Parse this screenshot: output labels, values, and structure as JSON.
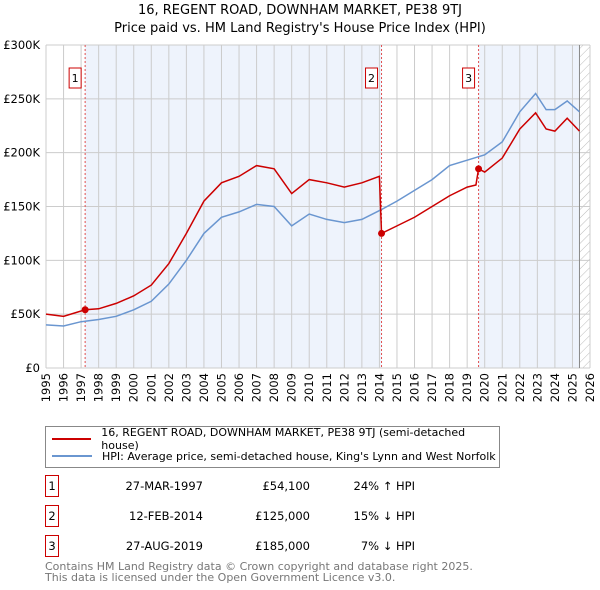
{
  "chart_data": {
    "type": "line",
    "title": "16, REGENT ROAD, DOWNHAM MARKET, PE38 9TJ",
    "subtitle": "Price paid vs. HM Land Registry's House Price Index (HPI)",
    "xlim": [
      1995,
      2026
    ],
    "ylim": [
      0,
      300000
    ],
    "x_ticks": [
      "1995",
      "1996",
      "1997",
      "1998",
      "1999",
      "2000",
      "2001",
      "2002",
      "2003",
      "2004",
      "2005",
      "2006",
      "2007",
      "2008",
      "2009",
      "2010",
      "2011",
      "2012",
      "2013",
      "2014",
      "2015",
      "2016",
      "2017",
      "2018",
      "2019",
      "2020",
      "2021",
      "2022",
      "2023",
      "2024",
      "2025",
      "2026"
    ],
    "y_ticks": [
      {
        "v": 0,
        "label": "£0"
      },
      {
        "v": 50000,
        "label": "£50K"
      },
      {
        "v": 100000,
        "label": "£100K"
      },
      {
        "v": 150000,
        "label": "£150K"
      },
      {
        "v": 200000,
        "label": "£200K"
      },
      {
        "v": 250000,
        "label": "£250K"
      },
      {
        "v": 300000,
        "label": "£300K"
      }
    ],
    "grid": true,
    "series": [
      {
        "name": "16, REGENT ROAD, DOWNHAM MARKET, PE38 9TJ (semi-detached house)",
        "color": "#cc0000",
        "x": [
          1995,
          1996,
          1997.23,
          1998,
          1999,
          2000,
          2001,
          2002,
          2003,
          2004,
          2005,
          2006,
          2007,
          2008,
          2009,
          2010,
          2011,
          2012,
          2013,
          2014.0,
          2014.12,
          2015,
          2016,
          2017,
          2018,
          2019,
          2019.5,
          2019.65,
          2020,
          2021,
          2022,
          2022.9,
          2023.5,
          2024,
          2024.7,
          2025.4
        ],
        "y": [
          50000,
          48000,
          54100,
          55000,
          60000,
          67000,
          77000,
          97000,
          125000,
          155000,
          172000,
          178000,
          188000,
          185000,
          162000,
          175000,
          172000,
          168000,
          172000,
          178000,
          125000,
          132000,
          140000,
          150000,
          160000,
          168000,
          170000,
          185000,
          182000,
          195000,
          222000,
          237000,
          222000,
          220000,
          232000,
          220000
        ]
      },
      {
        "name": "HPI: Average price, semi-detached house, King's Lynn and West Norfolk",
        "color": "#6a96d0",
        "x": [
          1995,
          1996,
          1997,
          1998,
          1999,
          2000,
          2001,
          2002,
          2003,
          2004,
          2005,
          2006,
          2007,
          2008,
          2009,
          2010,
          2011,
          2012,
          2013,
          2014.1,
          2015,
          2016,
          2017,
          2018,
          2019,
          2020,
          2021,
          2022,
          2022.9,
          2023.5,
          2024,
          2024.7,
          2025.4
        ],
        "y": [
          40000,
          39000,
          43000,
          45000,
          48000,
          54000,
          62000,
          78000,
          100000,
          125000,
          140000,
          145000,
          152000,
          150000,
          132000,
          143000,
          138000,
          135000,
          138000,
          147000,
          155000,
          165000,
          175000,
          188000,
          193000,
          198000,
          210000,
          238000,
          255000,
          240000,
          240000,
          248000,
          238000
        ]
      }
    ],
    "sales": [
      {
        "n": "1",
        "x": 1997.23,
        "y": 54100
      },
      {
        "n": "2",
        "x": 2014.12,
        "y": 125000
      },
      {
        "n": "3",
        "x": 2019.65,
        "y": 185000
      }
    ],
    "legend_position": "bottom"
  },
  "transactions": [
    {
      "n": "1",
      "date": "27-MAR-1997",
      "price": "£54,100",
      "hpi": "24% ↑ HPI"
    },
    {
      "n": "2",
      "date": "12-FEB-2014",
      "price": "£125,000",
      "hpi": "15% ↓ HPI"
    },
    {
      "n": "3",
      "date": "27-AUG-2019",
      "price": "£185,000",
      "hpi": "7% ↓ HPI"
    }
  ],
  "footer": {
    "line1": "Contains HM Land Registry data © Crown copyright and database right 2025.",
    "line2": "This data is licensed under the Open Government Licence v3.0."
  }
}
